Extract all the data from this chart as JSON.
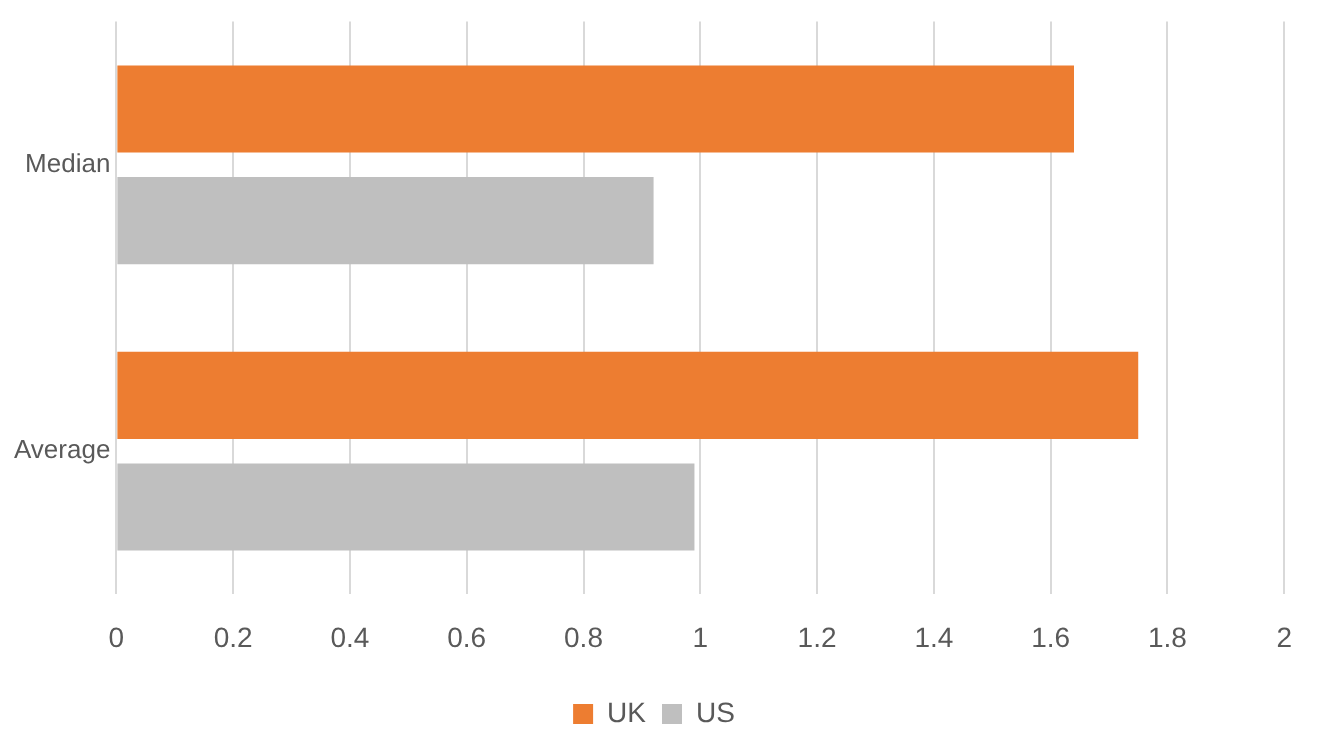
{
  "chart_data": {
    "type": "bar",
    "orientation": "horizontal",
    "categories": [
      "Median",
      "Average"
    ],
    "series": [
      {
        "name": "UK",
        "color": "#ed7d31",
        "values": [
          1.64,
          1.75
        ]
      },
      {
        "name": "US",
        "color": "#bfbfbf",
        "values": [
          0.92,
          0.99
        ]
      }
    ],
    "xlim": [
      0,
      2
    ],
    "xticks": [
      0,
      0.2,
      0.4,
      0.6,
      0.8,
      1,
      1.2,
      1.4,
      1.6,
      1.8,
      2
    ],
    "grid": "x",
    "legend": "bottom"
  }
}
